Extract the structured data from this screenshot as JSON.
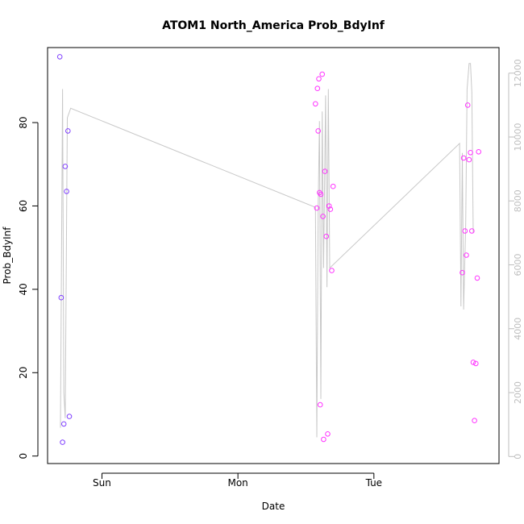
{
  "chart_data": {
    "type": "scatter",
    "title": "ATOM1 North_America Prob_BdyInf",
    "xlabel": "Date",
    "ylabel": "Prob_BdyInf",
    "x_ticks": [
      {
        "label": "Sun",
        "t": 1.0
      },
      {
        "label": "Mon",
        "t": 2.0
      },
      {
        "label": "Tue",
        "t": 3.0
      }
    ],
    "y_ticks": [
      0,
      20,
      40,
      60,
      80
    ],
    "y2_ticks": [
      0,
      2000,
      4000,
      6000,
      8000,
      10000,
      12000
    ],
    "xlim": [
      0.6,
      3.92
    ],
    "ylim": [
      -1.8,
      98
    ],
    "y2lim": [
      -220,
      12800
    ],
    "grid": false,
    "colors": {
      "points_early": "#7f3fff",
      "points_late": "#ff33ff",
      "line": "#c8c8c8",
      "axis": "#000000",
      "right_axis": "#bebebe"
    },
    "series": [
      {
        "kind": "points",
        "points": [
          {
            "t": 0.69,
            "y": 95.8,
            "c": "#7f3fff"
          },
          {
            "t": 0.7,
            "y": 38.0,
            "c": "#7f3fff"
          },
          {
            "t": 0.71,
            "y": 3.3,
            "c": "#7f3fff"
          },
          {
            "t": 0.72,
            "y": 7.7,
            "c": "#7f3fff"
          },
          {
            "t": 0.73,
            "y": 69.5,
            "c": "#7f3fff"
          },
          {
            "t": 0.74,
            "y": 63.5,
            "c": "#7f3fff"
          },
          {
            "t": 0.75,
            "y": 78.0,
            "c": "#7f3fff"
          },
          {
            "t": 0.76,
            "y": 9.5,
            "c": "#7f3fff"
          },
          {
            "t": 2.57,
            "y": 84.5,
            "c": "#ff33ff"
          },
          {
            "t": 2.58,
            "y": 59.5,
            "c": "#ff33ff"
          },
          {
            "t": 2.585,
            "y": 88.2,
            "c": "#ff33ff"
          },
          {
            "t": 2.59,
            "y": 78.0,
            "c": "#ff33ff"
          },
          {
            "t": 2.595,
            "y": 90.5,
            "c": "#ff33ff"
          },
          {
            "t": 2.6,
            "y": 63.2,
            "c": "#ff33ff"
          },
          {
            "t": 2.605,
            "y": 12.3,
            "c": "#ff33ff"
          },
          {
            "t": 2.61,
            "y": 62.8,
            "c": "#ff33ff"
          },
          {
            "t": 2.62,
            "y": 91.6,
            "c": "#ff33ff"
          },
          {
            "t": 2.625,
            "y": 57.5,
            "c": "#ff33ff"
          },
          {
            "t": 2.63,
            "y": 4.0,
            "c": "#ff33ff"
          },
          {
            "t": 2.64,
            "y": 68.3,
            "c": "#ff33ff"
          },
          {
            "t": 2.65,
            "y": 52.7,
            "c": "#ff33ff"
          },
          {
            "t": 2.66,
            "y": 5.3,
            "c": "#ff33ff"
          },
          {
            "t": 2.67,
            "y": 60.0,
            "c": "#ff33ff"
          },
          {
            "t": 2.68,
            "y": 59.2,
            "c": "#ff33ff"
          },
          {
            "t": 2.69,
            "y": 44.5,
            "c": "#ff33ff"
          },
          {
            "t": 2.7,
            "y": 64.7,
            "c": "#ff33ff"
          },
          {
            "t": 3.65,
            "y": 44.0,
            "c": "#ff33ff"
          },
          {
            "t": 3.66,
            "y": 71.5,
            "c": "#ff33ff"
          },
          {
            "t": 3.67,
            "y": 54.0,
            "c": "#ff33ff"
          },
          {
            "t": 3.68,
            "y": 48.2,
            "c": "#ff33ff"
          },
          {
            "t": 3.69,
            "y": 84.2,
            "c": "#ff33ff"
          },
          {
            "t": 3.7,
            "y": 71.1,
            "c": "#ff33ff"
          },
          {
            "t": 3.71,
            "y": 72.8,
            "c": "#ff33ff"
          },
          {
            "t": 3.72,
            "y": 54.0,
            "c": "#ff33ff"
          },
          {
            "t": 3.73,
            "y": 22.5,
            "c": "#ff33ff"
          },
          {
            "t": 3.74,
            "y": 8.5,
            "c": "#ff33ff"
          },
          {
            "t": 3.75,
            "y": 22.2,
            "c": "#ff33ff"
          },
          {
            "t": 3.76,
            "y": 42.7,
            "c": "#ff33ff"
          },
          {
            "t": 3.77,
            "y": 73.0,
            "c": "#ff33ff"
          }
        ]
      },
      {
        "kind": "line",
        "axis": "right",
        "points": [
          {
            "t": 0.695,
            "y2": 900
          },
          {
            "t": 0.71,
            "y2": 11500
          },
          {
            "t": 0.72,
            "y2": 2000
          },
          {
            "t": 0.73,
            "y2": 1200
          },
          {
            "t": 0.745,
            "y2": 10600
          },
          {
            "t": 0.77,
            "y2": 10900
          },
          {
            "t": 2.57,
            "y2": 7800
          },
          {
            "t": 2.58,
            "y2": 600
          },
          {
            "t": 2.59,
            "y2": 7800
          },
          {
            "t": 2.6,
            "y2": 10500
          },
          {
            "t": 2.61,
            "y2": 1800
          },
          {
            "t": 2.62,
            "y2": 10800
          },
          {
            "t": 2.63,
            "y2": 5900
          },
          {
            "t": 2.645,
            "y2": 11300
          },
          {
            "t": 2.655,
            "y2": 5300
          },
          {
            "t": 2.665,
            "y2": 11500
          },
          {
            "t": 2.675,
            "y2": 5900
          },
          {
            "t": 3.63,
            "y2": 9800
          },
          {
            "t": 3.64,
            "y2": 4700
          },
          {
            "t": 3.65,
            "y2": 9500
          },
          {
            "t": 3.66,
            "y2": 4600
          },
          {
            "t": 3.675,
            "y2": 7300
          },
          {
            "t": 3.685,
            "y2": 11500
          },
          {
            "t": 3.7,
            "y2": 12300
          },
          {
            "t": 3.71,
            "y2": 12300
          },
          {
            "t": 3.72,
            "y2": 11400
          },
          {
            "t": 3.73,
            "y2": 7000
          }
        ]
      }
    ]
  }
}
